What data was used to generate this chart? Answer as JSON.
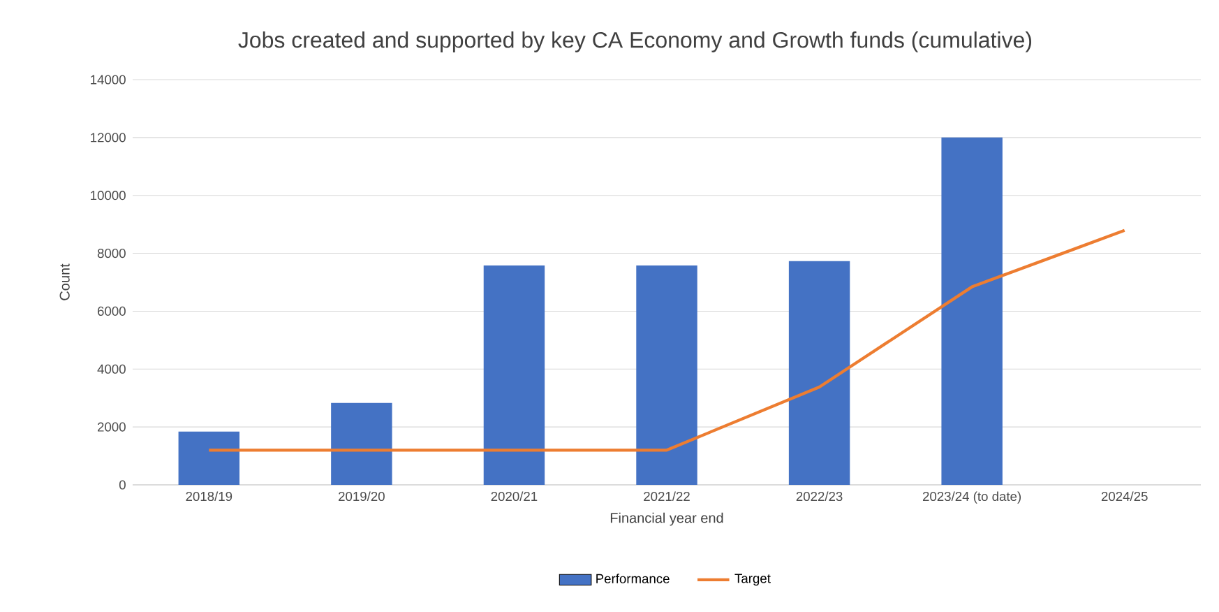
{
  "chart_data": {
    "type": "bar",
    "title": "Jobs created and supported by key CA Economy and Growth funds (cumulative)",
    "xlabel": "Financial year end",
    "ylabel": "Count",
    "categories": [
      "2018/19",
      "2019/20",
      "2020/21",
      "2021/22",
      "2022/23",
      "2023/24 (to date)",
      "2024/25"
    ],
    "series": [
      {
        "name": "Performance",
        "color": "#4472c4",
        "values": [
          1840,
          2830,
          7580,
          7580,
          7730,
          12000,
          null
        ]
      },
      {
        "name": "Target",
        "type": "line",
        "color": "#ed7d31",
        "marker": "none",
        "values": [
          1200,
          1200,
          1200,
          1200,
          3380,
          6840,
          8790
        ]
      }
    ],
    "ylim": [
      0,
      14000
    ],
    "yticks": [
      0,
      2000,
      4000,
      6000,
      8000,
      10000,
      12000,
      14000
    ],
    "grid": "y",
    "legend": "bottom"
  }
}
